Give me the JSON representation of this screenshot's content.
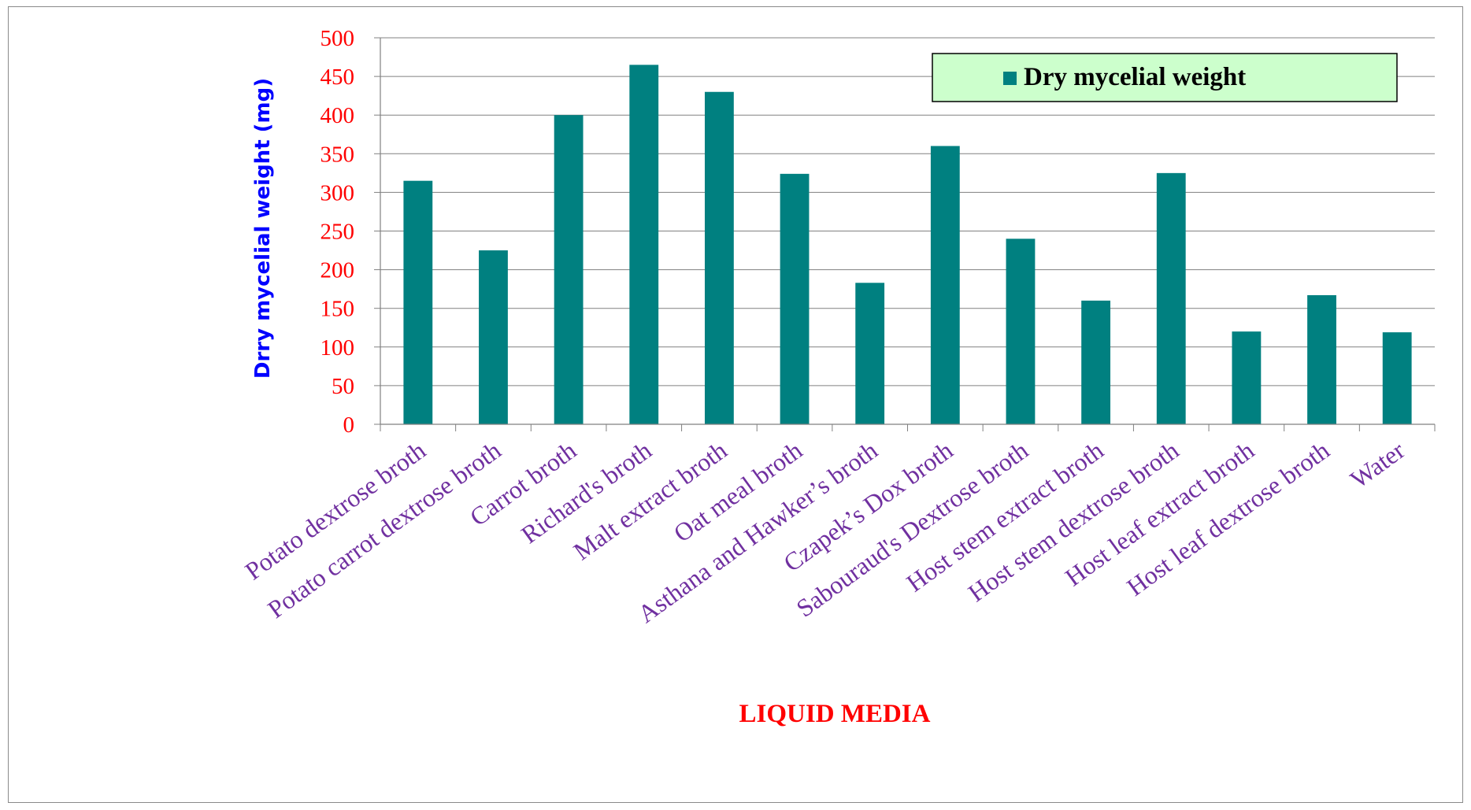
{
  "chart_data": {
    "type": "bar",
    "title": "",
    "xlabel": "LIQUID MEDIA",
    "ylabel": "Drry mycelial weight (mg)",
    "ylim": [
      0,
      500
    ],
    "yticks": [
      0,
      50,
      100,
      150,
      200,
      250,
      300,
      350,
      400,
      450,
      500
    ],
    "grid": true,
    "legend_position": "top-right",
    "categories": [
      "Potato dextrose broth",
      "Potato carrot dextrose broth",
      "Carrot broth",
      "Richard's broth",
      "Malt extract broth",
      "Oat meal broth",
      "Asthana and Hawker’s broth",
      "Czapek’s Dox broth",
      "Sabouraud's Dextrose broth",
      "Host stem extract  broth",
      "Host stem dextrose  broth",
      "Host leaf extract  broth",
      "Host leaf dextrose  broth",
      "Water"
    ],
    "series": [
      {
        "name": "Dry mycelial weight",
        "values": [
          315,
          225,
          400,
          465,
          430,
          324,
          183,
          360,
          240,
          160,
          325,
          120,
          167,
          119
        ]
      }
    ],
    "colors": {
      "bar": "#008080",
      "tick_y": "#ff0000",
      "tick_x": "#7030a0",
      "ylabel": "#0000ff",
      "xlabel": "#ff0000",
      "legend_bg": "#ccffcc",
      "grid": "#808080"
    }
  }
}
